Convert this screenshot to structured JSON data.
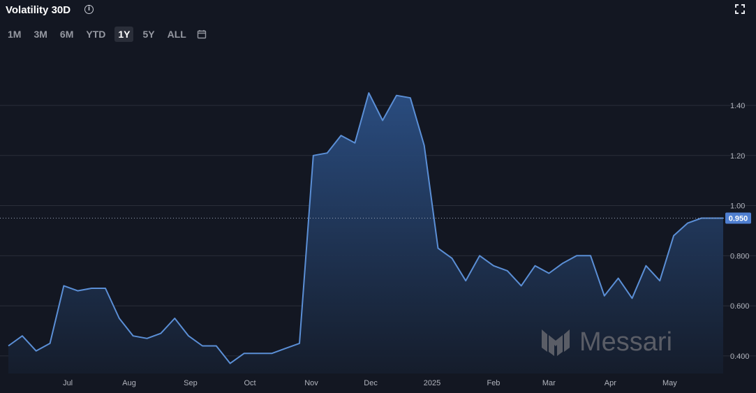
{
  "header": {
    "title": "Volatility 30D",
    "info_icon": "info-icon",
    "fullscreen_icon": "fullscreen-icon"
  },
  "ranges": {
    "buttons": [
      "1M",
      "3M",
      "6M",
      "YTD",
      "1Y",
      "5Y",
      "ALL"
    ],
    "active": "1Y",
    "calendar_icon": "calendar-icon"
  },
  "watermark": "Messari",
  "colors": {
    "background": "#131722",
    "line": "#5b8fd6",
    "area_top": "#2b4f84",
    "area_bottom": "#151d2c",
    "grid": "#2a2e39",
    "last_value_badge": "#4f7fd1"
  },
  "chart_data": {
    "type": "area",
    "title": "Volatility 30D",
    "xlabel": "",
    "ylabel": "",
    "ylim": [
      0.33,
      1.57
    ],
    "y_ticks": [
      {
        "value": 0.4,
        "label": "0.400"
      },
      {
        "value": 0.6,
        "label": "0.600"
      },
      {
        "value": 0.8,
        "label": "0.800"
      },
      {
        "value": 1.0,
        "label": "1.00"
      },
      {
        "value": 1.2,
        "label": "1.20"
      },
      {
        "value": 1.4,
        "label": "1.40"
      }
    ],
    "x_ticks": [
      "Jul",
      "Aug",
      "Sep",
      "Oct",
      "Nov",
      "Dec",
      "2025",
      "Feb",
      "Mar",
      "Apr",
      "May"
    ],
    "x_range": [
      "2024-06-01",
      "2025-05-28"
    ],
    "last_value": 0.95,
    "last_value_label": "0.950",
    "grid": "horizontal",
    "series": [
      {
        "name": "",
        "points": [
          [
            "2024-06-01",
            0.44
          ],
          [
            "2024-06-08",
            0.48
          ],
          [
            "2024-06-15",
            0.42
          ],
          [
            "2024-06-22",
            0.45
          ],
          [
            "2024-06-29",
            0.68
          ],
          [
            "2024-07-06",
            0.66
          ],
          [
            "2024-07-13",
            0.67
          ],
          [
            "2024-07-20",
            0.67
          ],
          [
            "2024-07-27",
            0.55
          ],
          [
            "2024-08-03",
            0.48
          ],
          [
            "2024-08-10",
            0.47
          ],
          [
            "2024-08-17",
            0.49
          ],
          [
            "2024-08-24",
            0.55
          ],
          [
            "2024-08-31",
            0.48
          ],
          [
            "2024-09-07",
            0.44
          ],
          [
            "2024-09-14",
            0.44
          ],
          [
            "2024-09-21",
            0.37
          ],
          [
            "2024-09-28",
            0.41
          ],
          [
            "2024-10-05",
            0.41
          ],
          [
            "2024-10-12",
            0.41
          ],
          [
            "2024-10-19",
            0.43
          ],
          [
            "2024-10-26",
            0.45
          ],
          [
            "2024-11-02",
            1.2
          ],
          [
            "2024-11-09",
            1.21
          ],
          [
            "2024-11-16",
            1.28
          ],
          [
            "2024-11-23",
            1.25
          ],
          [
            "2024-11-30",
            1.45
          ],
          [
            "2024-12-07",
            1.34
          ],
          [
            "2024-12-14",
            1.44
          ],
          [
            "2024-12-21",
            1.43
          ],
          [
            "2024-12-28",
            1.24
          ],
          [
            "2025-01-04",
            0.83
          ],
          [
            "2025-01-11",
            0.79
          ],
          [
            "2025-01-18",
            0.7
          ],
          [
            "2025-01-25",
            0.8
          ],
          [
            "2025-02-01",
            0.76
          ],
          [
            "2025-02-08",
            0.74
          ],
          [
            "2025-02-15",
            0.68
          ],
          [
            "2025-02-22",
            0.76
          ],
          [
            "2025-03-01",
            0.73
          ],
          [
            "2025-03-08",
            0.77
          ],
          [
            "2025-03-15",
            0.8
          ],
          [
            "2025-03-22",
            0.8
          ],
          [
            "2025-03-29",
            0.64
          ],
          [
            "2025-04-05",
            0.71
          ],
          [
            "2025-04-12",
            0.63
          ],
          [
            "2025-04-19",
            0.76
          ],
          [
            "2025-04-26",
            0.7
          ],
          [
            "2025-05-03",
            0.88
          ],
          [
            "2025-05-10",
            0.93
          ],
          [
            "2025-05-17",
            0.95
          ],
          [
            "2025-05-28",
            0.95
          ]
        ]
      }
    ]
  }
}
